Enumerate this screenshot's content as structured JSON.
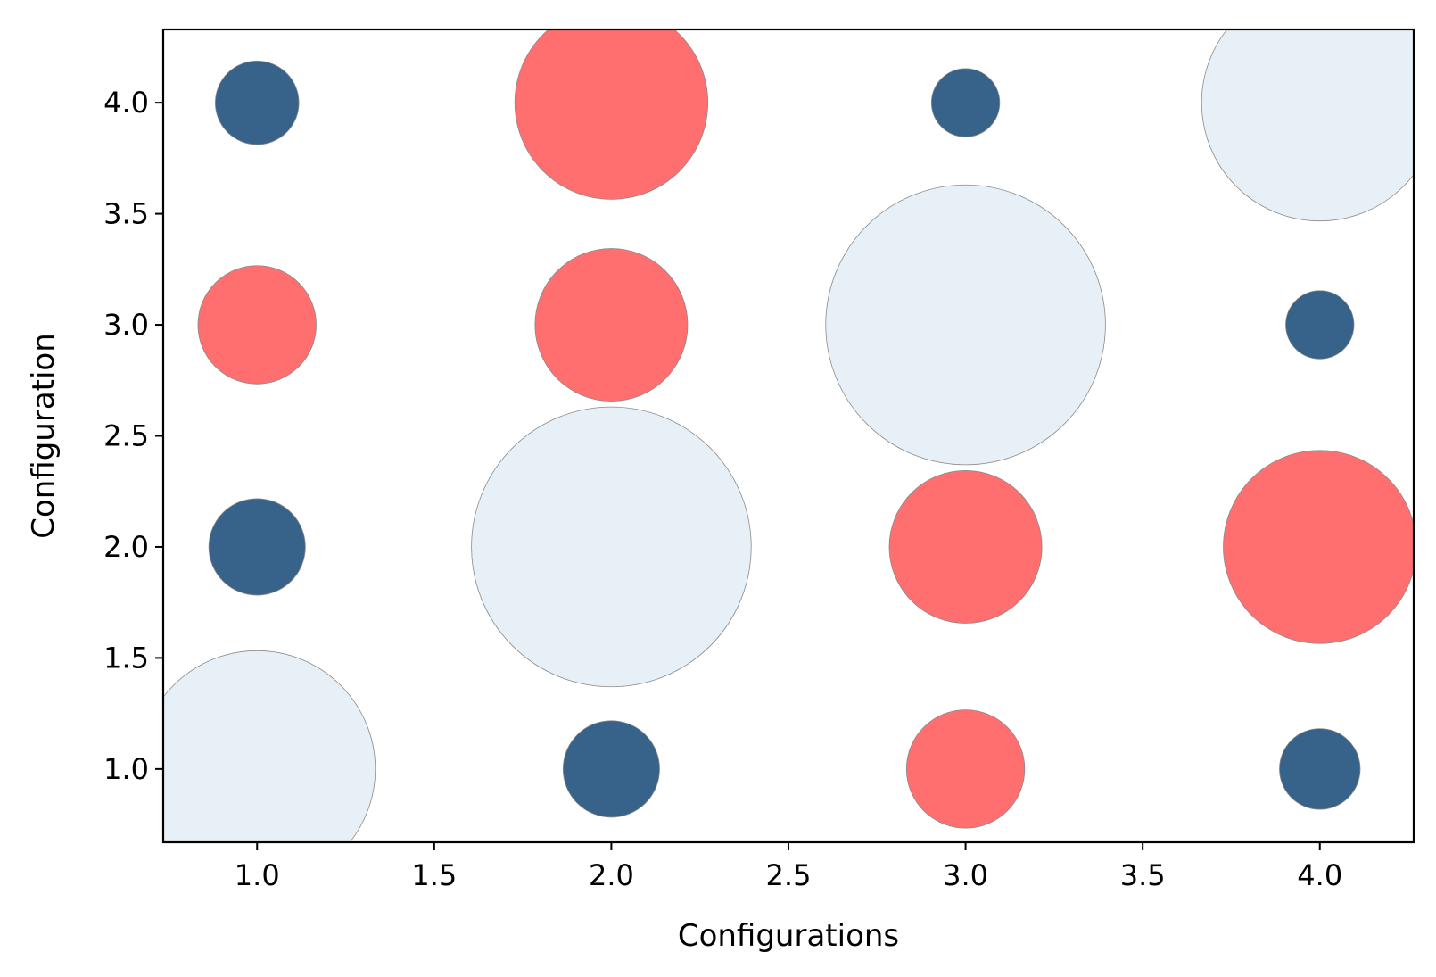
{
  "chart_data": {
    "type": "scatter",
    "title": "",
    "xlabel": "Configurations",
    "ylabel": "Configuration",
    "xlim": [
      0.735,
      4.265
    ],
    "ylim": [
      0.67,
      4.33
    ],
    "x_ticks": [
      "1.0",
      "1.5",
      "2.0",
      "2.5",
      "3.0",
      "3.5",
      "4.0"
    ],
    "y_ticks": [
      "1.0",
      "1.5",
      "2.0",
      "2.5",
      "3.0",
      "3.5",
      "4.0"
    ],
    "grid": false,
    "legend": "none",
    "colors": {
      "dark_blue": "#37628a",
      "coral": "#ff6f6f",
      "light_blue": "#e8f0f7",
      "edge": "#8a8a8a"
    },
    "points": [
      {
        "x": 1.0,
        "y": 1.0,
        "size": 6000,
        "color": "light_blue"
      },
      {
        "x": 1.0,
        "y": 2.0,
        "size": 1000,
        "color": "dark_blue"
      },
      {
        "x": 1.0,
        "y": 3.0,
        "size": 1500,
        "color": "coral"
      },
      {
        "x": 1.0,
        "y": 4.0,
        "size": 750,
        "color": "dark_blue"
      },
      {
        "x": 2.0,
        "y": 1.0,
        "size": 1000,
        "color": "dark_blue"
      },
      {
        "x": 2.0,
        "y": 2.0,
        "size": 8400,
        "color": "light_blue"
      },
      {
        "x": 2.0,
        "y": 3.0,
        "size": 2500,
        "color": "coral"
      },
      {
        "x": 2.0,
        "y": 4.0,
        "size": 4000,
        "color": "coral"
      },
      {
        "x": 3.0,
        "y": 1.0,
        "size": 1500,
        "color": "coral"
      },
      {
        "x": 3.0,
        "y": 2.0,
        "size": 2500,
        "color": "coral"
      },
      {
        "x": 3.0,
        "y": 3.0,
        "size": 8400,
        "color": "light_blue"
      },
      {
        "x": 3.0,
        "y": 4.0,
        "size": 500,
        "color": "dark_blue"
      },
      {
        "x": 4.0,
        "y": 1.0,
        "size": 700,
        "color": "dark_blue"
      },
      {
        "x": 4.0,
        "y": 2.0,
        "size": 4000,
        "color": "coral"
      },
      {
        "x": 4.0,
        "y": 3.0,
        "size": 500,
        "color": "dark_blue"
      },
      {
        "x": 4.0,
        "y": 4.0,
        "size": 6000,
        "color": "light_blue"
      }
    ]
  }
}
